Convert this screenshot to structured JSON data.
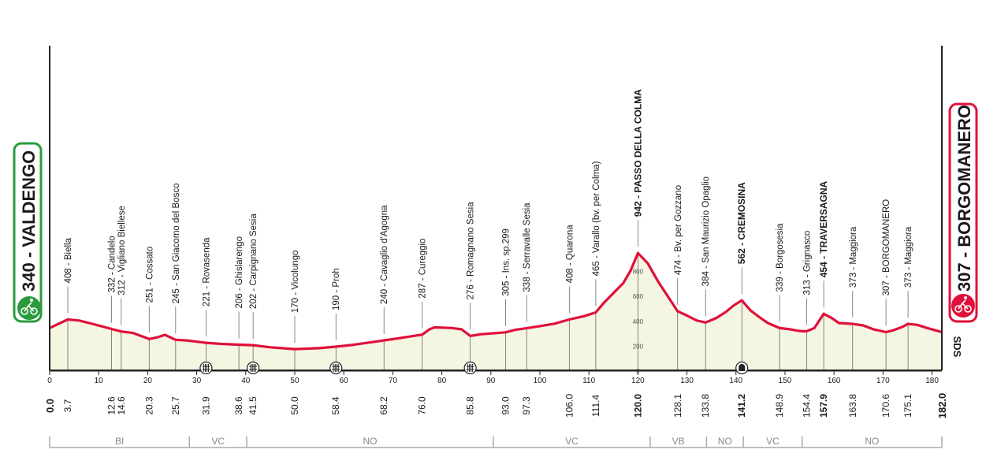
{
  "chart_data": {
    "type": "area",
    "title": "",
    "xlabel": "",
    "ylabel": "",
    "xlim": [
      0,
      182
    ],
    "ylim": [
      0,
      942
    ],
    "start": {
      "label": "340 - VALDENGO",
      "km": "0.0"
    },
    "finish": {
      "label": "307 - BORGOMANERO",
      "km": "182.0"
    },
    "profile": {
      "x": [
        0,
        3.7,
        6,
        9,
        12.6,
        14.6,
        17,
        20.3,
        22,
        23.5,
        25.7,
        28,
        31.9,
        35,
        38.6,
        41.5,
        45,
        50,
        55,
        58.4,
        62,
        68.2,
        72,
        76,
        77.5,
        78.5,
        82,
        84,
        85.8,
        88,
        93,
        95,
        97.3,
        100,
        103,
        106,
        109,
        111.4,
        113,
        115,
        117,
        118.5,
        120,
        122,
        124,
        126,
        128.1,
        130,
        132,
        133.8,
        136,
        138,
        139.5,
        141.2,
        143,
        145,
        146.5,
        148.9,
        151,
        153,
        154.4,
        156,
        157.9,
        159.5,
        161,
        163.8,
        166,
        168,
        170.6,
        172,
        174,
        175.1,
        177,
        179,
        182
      ],
      "y": [
        340,
        408,
        400,
        370,
        332,
        312,
        300,
        251,
        265,
        285,
        245,
        240,
        221,
        212,
        206,
        202,
        185,
        170,
        178,
        190,
        205,
        240,
        262,
        287,
        330,
        345,
        340,
        330,
        276,
        290,
        305,
        325,
        338,
        355,
        375,
        408,
        435,
        465,
        540,
        620,
        700,
        800,
        942,
        860,
        720,
        600,
        474,
        440,
        400,
        384,
        420,
        470,
        520,
        562,
        480,
        420,
        380,
        339,
        330,
        315,
        313,
        340,
        454,
        420,
        380,
        373,
        360,
        330,
        307,
        320,
        350,
        373,
        365,
        340,
        307
      ]
    },
    "waypoints": [
      {
        "km": "3.7",
        "label": "408 - Biella"
      },
      {
        "km": "12.6",
        "label": "332 - Candelo"
      },
      {
        "km": "14.6",
        "label": "312 - Vigliano Biellese"
      },
      {
        "km": "20.3",
        "label": "251 - Cossato"
      },
      {
        "km": "25.7",
        "label": "245 - San Giacomo del Bosco"
      },
      {
        "km": "31.9",
        "label": "221 - Rovasenda"
      },
      {
        "km": "38.6",
        "label": "206 - Ghislarengo"
      },
      {
        "km": "41.5",
        "label": "202 - Carpignano Sesia"
      },
      {
        "km": "50.0",
        "label": "170 - Vicolungo"
      },
      {
        "km": "58.4",
        "label": "190 - Proh"
      },
      {
        "km": "68.2",
        "label": "240 - Cavaglio d'Agogna"
      },
      {
        "km": "76.0",
        "label": "287 - Cureggio"
      },
      {
        "km": "85.8",
        "label": "276 - Romagnano Sesia"
      },
      {
        "km": "93.0",
        "label": "305 - Ins. sp.299"
      },
      {
        "km": "97.3",
        "label": "338 - Serravalle Sesia"
      },
      {
        "km": "106.0",
        "label": "408 - Quarona"
      },
      {
        "km": "111.4",
        "label": "465 - Varallo (bv. per Colma)"
      },
      {
        "km": "120.0",
        "label": "942 - PASSO DELLA COLMA",
        "bold": true
      },
      {
        "km": "128.1",
        "label": "474 - Bv. per Gozzano"
      },
      {
        "km": "133.8",
        "label": "384 - San Maurizio Opaglio"
      },
      {
        "km": "141.2",
        "label": "562 - CREMOSINA",
        "bold": true
      },
      {
        "km": "148.9",
        "label": "339 - Borgosesia"
      },
      {
        "km": "154.4",
        "label": "313 - Grignasco"
      },
      {
        "km": "157.9",
        "label": "454 - TRAVERSAGNA",
        "bold": true
      },
      {
        "km": "163.8",
        "label": "373 - Maggiora"
      },
      {
        "km": "170.6",
        "label": "307 - BORGOMANERO"
      },
      {
        "km": "175.1",
        "label": "373 - Maggiora"
      }
    ],
    "x_ticks": [
      "0",
      "10",
      "20",
      "30",
      "40",
      "50",
      "60",
      "70",
      "80",
      "90",
      "100",
      "110",
      "120",
      "130",
      "140",
      "150",
      "160",
      "170",
      "180"
    ],
    "y_ticks": [
      "0",
      "200",
      "400",
      "600",
      "800"
    ],
    "markers": [
      {
        "km": 31.9,
        "icon": "railway-crossing-icon"
      },
      {
        "km": 41.5,
        "icon": "railway-crossing-icon"
      },
      {
        "km": 58.4,
        "icon": "railway-crossing-icon"
      },
      {
        "km": 85.8,
        "icon": "railway-crossing-icon"
      },
      {
        "km": 141.2,
        "icon": "tunnel-icon"
      }
    ],
    "regions": [
      {
        "label": "BI",
        "from": 0,
        "to": 28.5
      },
      {
        "label": "VC",
        "from": 28.5,
        "to": 40.2
      },
      {
        "label": "NO",
        "from": 40.2,
        "to": 90.5
      },
      {
        "label": "VC",
        "from": 90.5,
        "to": 122.5
      },
      {
        "label": "VB",
        "from": 122.5,
        "to": 134
      },
      {
        "label": "NO",
        "from": 134,
        "to": 141.5
      },
      {
        "label": "VC",
        "from": 141.5,
        "to": 153.5
      },
      {
        "label": "NO",
        "from": 153.5,
        "to": 182
      }
    ],
    "brand": "SDS",
    "colors": {
      "line": "#e0103a",
      "fill": "#f4f6e2",
      "start_badge": "#2a9b3c",
      "finish_badge": "#e0103a",
      "axis": "#222222",
      "text": "#1a1a1a",
      "leader": "#555555",
      "region": "#aaaaaa"
    }
  }
}
